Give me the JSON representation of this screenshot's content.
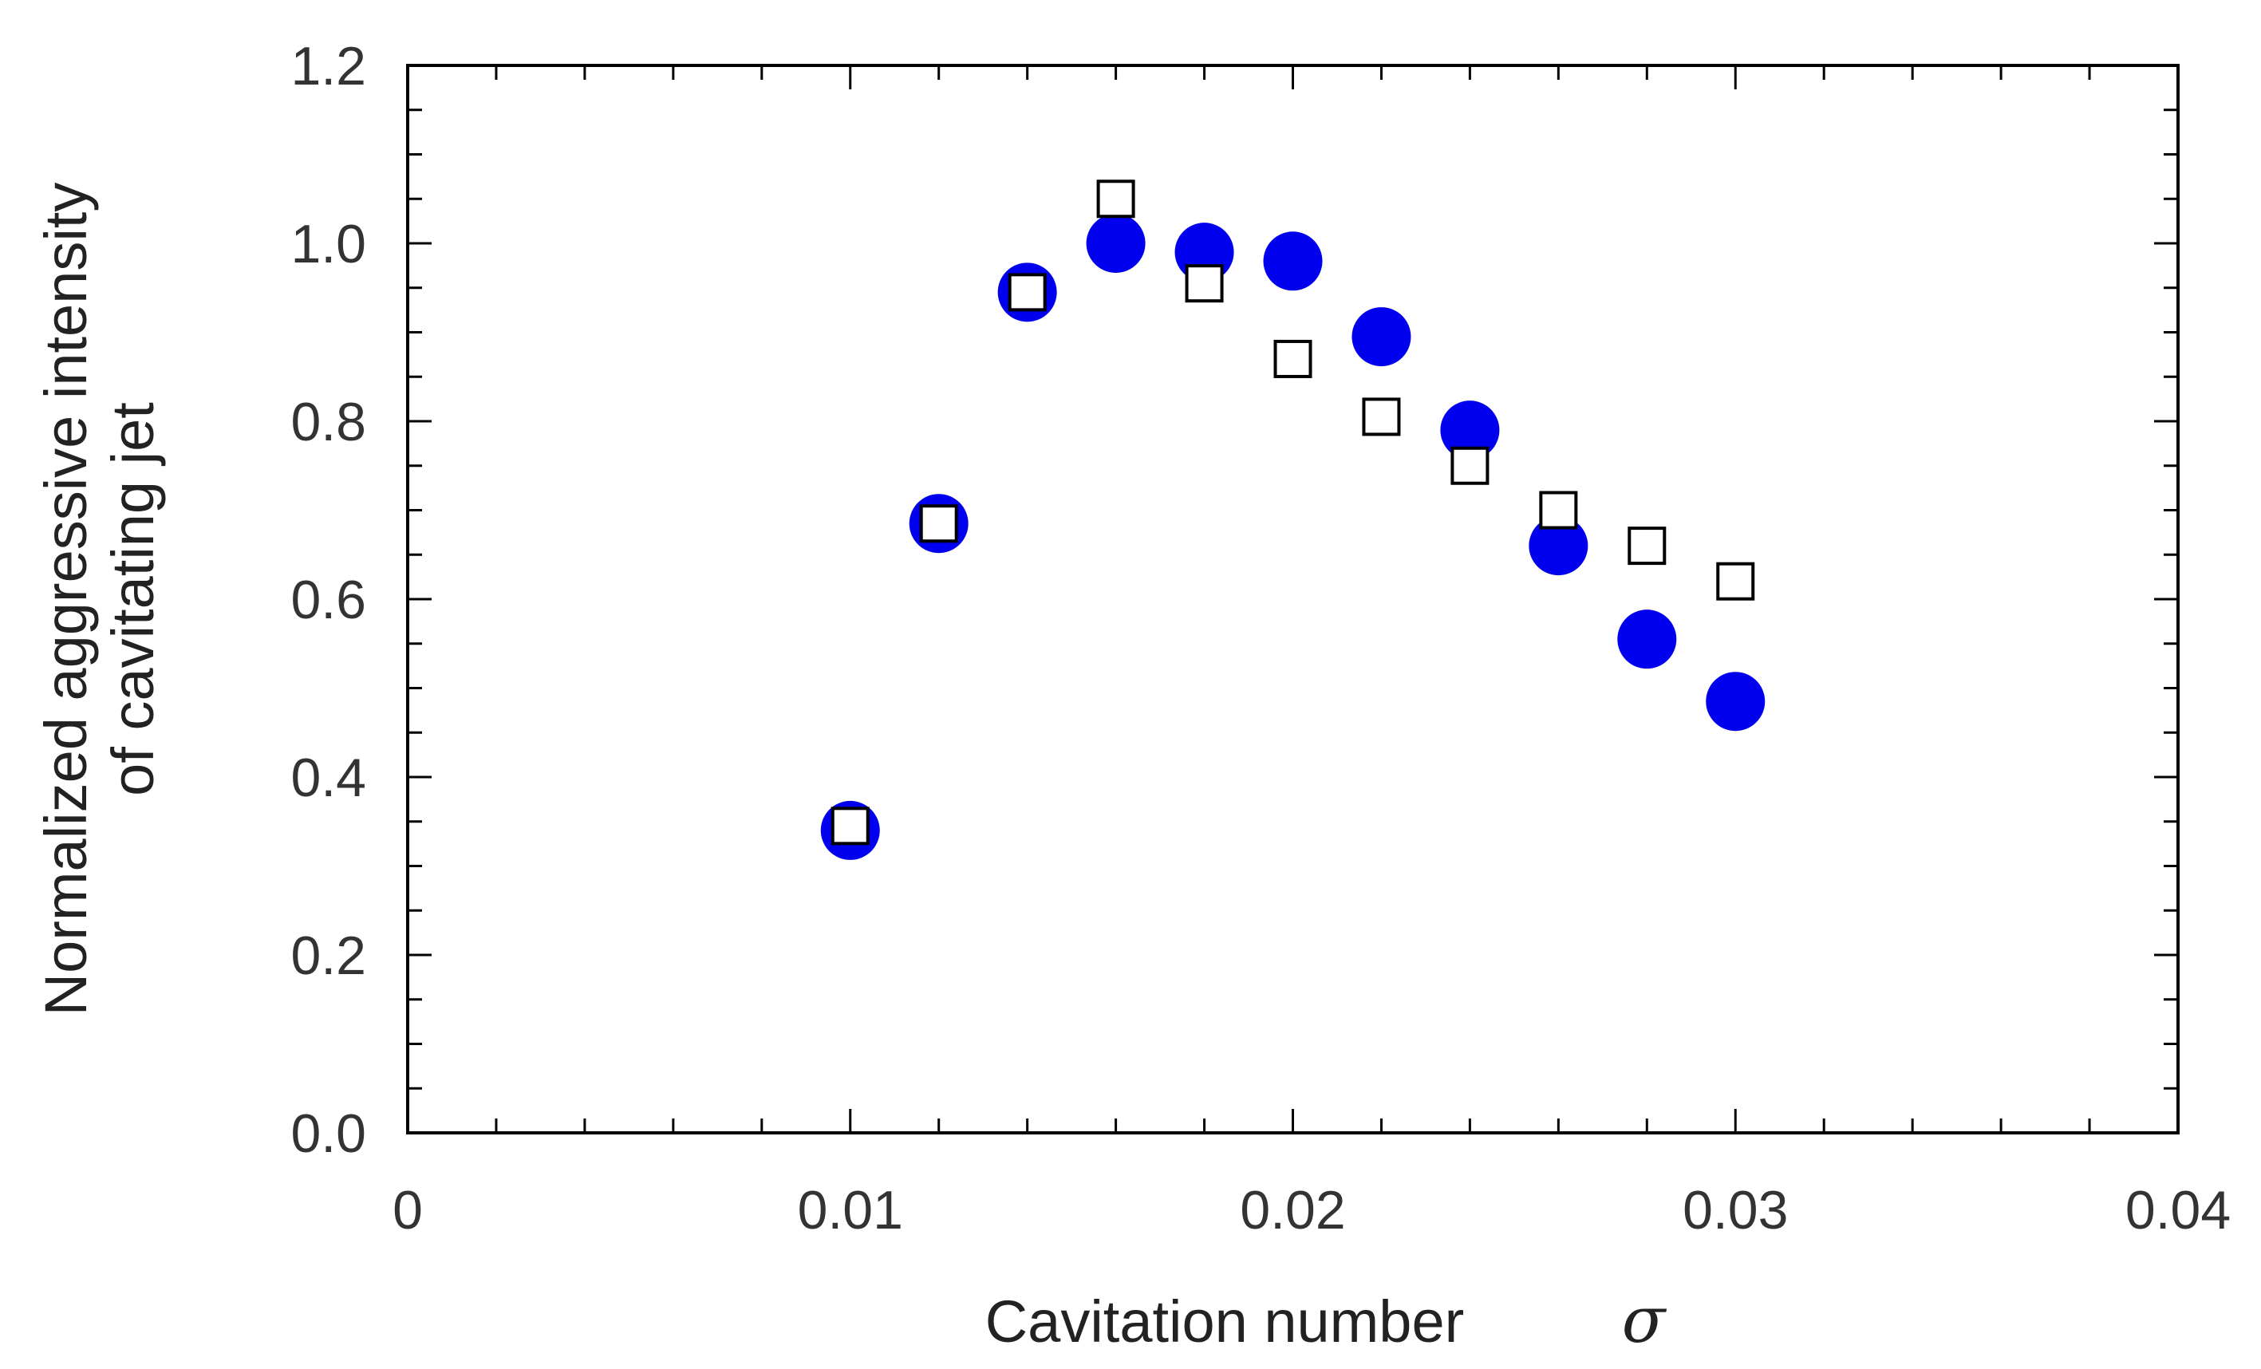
{
  "chart_data": {
    "type": "scatter",
    "title": "",
    "xlabel": "Cavitation number",
    "xlabel_symbol": "σ",
    "ylabel_line1": "Normalized aggressive intensity",
    "ylabel_line2": "of cavitating jet",
    "xlim": [
      0,
      0.04
    ],
    "ylim": [
      0,
      1.2
    ],
    "x_ticks": [
      0,
      0.01,
      0.02,
      0.03,
      0.04
    ],
    "x_tick_labels": [
      "0",
      "0.01",
      "0.02",
      "0.03",
      "0.04"
    ],
    "y_ticks": [
      0,
      0.2,
      0.4,
      0.6,
      0.8,
      1.0,
      1.2
    ],
    "y_tick_labels": [
      "0.0",
      "0.2",
      "0.4",
      "0.6",
      "0.8",
      "1.0",
      "1.2"
    ],
    "x_minor_step": 0.002,
    "y_minor_step": 0.05,
    "grid": false,
    "series": [
      {
        "name": "filled circles",
        "marker": "circle",
        "color": "#0000ee",
        "x": [
          0.01,
          0.012,
          0.014,
          0.016,
          0.018,
          0.02,
          0.022,
          0.024,
          0.026,
          0.028,
          0.03
        ],
        "y": [
          0.34,
          0.685,
          0.945,
          1.0,
          0.99,
          0.98,
          0.895,
          0.79,
          0.66,
          0.555,
          0.485
        ]
      },
      {
        "name": "open squares",
        "marker": "square",
        "color": "#000000",
        "x": [
          0.01,
          0.012,
          0.014,
          0.016,
          0.018,
          0.02,
          0.022,
          0.024,
          0.026,
          0.028,
          0.03
        ],
        "y": [
          0.345,
          0.685,
          0.945,
          1.05,
          0.955,
          0.87,
          0.805,
          0.75,
          0.7,
          0.66,
          0.62
        ]
      }
    ]
  }
}
